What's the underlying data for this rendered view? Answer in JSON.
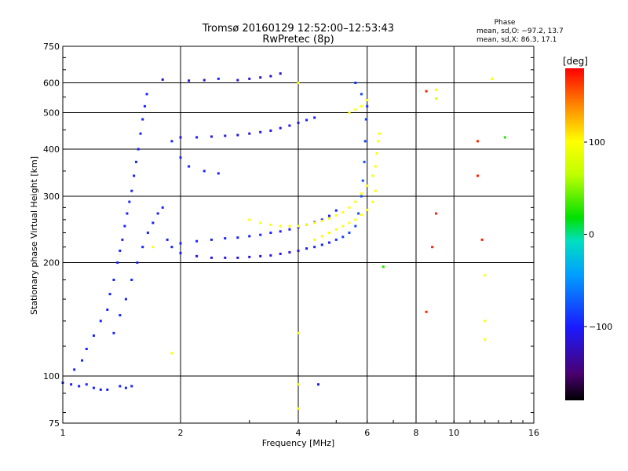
{
  "title": {
    "line1": "Tromsø 20160129 12:52:00–12:53:43",
    "line2": "RwPretec (8p)"
  },
  "phase_info": {
    "heading": "Phase",
    "line_o": "mean, sd,O: −97.2, 13.7",
    "line_x": "mean, sd,X:  86.3, 17.1"
  },
  "colorbar": {
    "label": "[deg]",
    "ticks": [
      {
        "value": 100,
        "label": "100"
      },
      {
        "value": 0,
        "label": "0"
      },
      {
        "value": -100,
        "label": "−100"
      }
    ],
    "range": [
      -180,
      180
    ]
  },
  "chart_data": {
    "type": "scatter",
    "xlabel": "Frequency [MHz]",
    "ylabel": "Stationary phase Virtual Height [km]",
    "xscale": "log2",
    "yscale": "log",
    "xlim": [
      1,
      16
    ],
    "ylim": [
      75,
      750
    ],
    "xticks": [
      {
        "value": 1,
        "label": "1"
      },
      {
        "value": 2,
        "label": "2"
      },
      {
        "value": 4,
        "label": "4"
      },
      {
        "value": 6,
        "label": "6"
      },
      {
        "value": 8,
        "label": "8"
      },
      {
        "value": 10,
        "label": "10"
      },
      {
        "value": 16,
        "label": "16"
      }
    ],
    "yticks": [
      {
        "value": 75,
        "label": "75"
      },
      {
        "value": 100,
        "label": "100"
      },
      {
        "value": 200,
        "label": "200"
      },
      {
        "value": 300,
        "label": "300"
      },
      {
        "value": 400,
        "label": "400"
      },
      {
        "value": 500,
        "label": "500"
      },
      {
        "value": 600,
        "label": "600"
      },
      {
        "value": 750,
        "label": "750"
      }
    ],
    "grid": true,
    "series": [
      {
        "color_by": "phase",
        "points": [
          [
            1.0,
            96,
            -97
          ],
          [
            1.05,
            95,
            -97
          ],
          [
            1.1,
            94,
            -97
          ],
          [
            1.15,
            95,
            -95
          ],
          [
            1.2,
            93,
            -97
          ],
          [
            1.25,
            92,
            -97
          ],
          [
            1.3,
            92,
            -97
          ],
          [
            1.4,
            94,
            -95
          ],
          [
            1.45,
            93,
            -97
          ],
          [
            1.5,
            94,
            -95
          ],
          [
            1.07,
            104,
            -95
          ],
          [
            1.12,
            110,
            -95
          ],
          [
            1.15,
            118,
            -97
          ],
          [
            1.2,
            128,
            -97
          ],
          [
            1.25,
            140,
            -97
          ],
          [
            1.3,
            150,
            -97
          ],
          [
            1.32,
            165,
            -97
          ],
          [
            1.35,
            180,
            -97
          ],
          [
            1.38,
            200,
            -97
          ],
          [
            1.4,
            215,
            -97
          ],
          [
            1.42,
            230,
            -97
          ],
          [
            1.44,
            250,
            -97
          ],
          [
            1.46,
            270,
            -97
          ],
          [
            1.48,
            290,
            -97
          ],
          [
            1.5,
            310,
            -97
          ],
          [
            1.52,
            340,
            -97
          ],
          [
            1.54,
            370,
            -97
          ],
          [
            1.56,
            400,
            -97
          ],
          [
            1.58,
            440,
            -97
          ],
          [
            1.6,
            480,
            -97
          ],
          [
            1.62,
            520,
            -97
          ],
          [
            1.64,
            560,
            -97
          ],
          [
            1.35,
            130,
            -95
          ],
          [
            1.4,
            145,
            -95
          ],
          [
            1.45,
            160,
            -97
          ],
          [
            1.5,
            180,
            -95
          ],
          [
            1.55,
            200,
            -97
          ],
          [
            1.6,
            220,
            -97
          ],
          [
            1.65,
            240,
            -97
          ],
          [
            1.7,
            255,
            -97
          ],
          [
            1.75,
            270,
            -97
          ],
          [
            1.8,
            280,
            -97
          ],
          [
            1.85,
            230,
            -97
          ],
          [
            1.9,
            220,
            -97
          ],
          [
            2.0,
            212,
            -97
          ],
          [
            2.2,
            208,
            -110
          ],
          [
            2.4,
            206,
            -110
          ],
          [
            2.6,
            206,
            -110
          ],
          [
            2.8,
            206,
            -110
          ],
          [
            3.0,
            207,
            -110
          ],
          [
            3.2,
            208,
            -110
          ],
          [
            3.4,
            209,
            -110
          ],
          [
            3.6,
            211,
            -110
          ],
          [
            3.8,
            213,
            -110
          ],
          [
            4.0,
            215,
            -110
          ],
          [
            4.2,
            218,
            -100
          ],
          [
            4.4,
            220,
            -97
          ],
          [
            4.6,
            223,
            -97
          ],
          [
            4.8,
            226,
            -97
          ],
          [
            5.0,
            230,
            -90
          ],
          [
            5.2,
            234,
            -85
          ],
          [
            5.4,
            240,
            -80
          ],
          [
            5.6,
            250,
            -80
          ],
          [
            5.7,
            270,
            -80
          ],
          [
            5.8,
            300,
            -80
          ],
          [
            5.85,
            330,
            -80
          ],
          [
            5.9,
            370,
            -80
          ],
          [
            5.93,
            420,
            -85
          ],
          [
            5.96,
            480,
            -85
          ],
          [
            6.0,
            520,
            -90
          ],
          [
            5.8,
            560,
            -85
          ],
          [
            5.6,
            600,
            -90
          ],
          [
            2.0,
            225,
            -97
          ],
          [
            2.2,
            228,
            -97
          ],
          [
            2.4,
            230,
            -97
          ],
          [
            2.6,
            232,
            -97
          ],
          [
            2.8,
            233,
            -97
          ],
          [
            3.0,
            235,
            -97
          ],
          [
            3.2,
            237,
            -97
          ],
          [
            3.4,
            240,
            -97
          ],
          [
            3.6,
            242,
            -97
          ],
          [
            3.8,
            245,
            -97
          ],
          [
            4.0,
            248,
            -97
          ],
          [
            4.2,
            252,
            -97
          ],
          [
            4.4,
            256,
            -97
          ],
          [
            4.6,
            260,
            -97
          ],
          [
            4.8,
            266,
            -97
          ],
          [
            5.0,
            275,
            -97
          ],
          [
            2.0,
            430,
            -105
          ],
          [
            2.2,
            430,
            -105
          ],
          [
            2.4,
            432,
            -105
          ],
          [
            2.6,
            434,
            -105
          ],
          [
            2.8,
            436,
            -110
          ],
          [
            3.0,
            440,
            -110
          ],
          [
            3.2,
            444,
            -110
          ],
          [
            3.4,
            448,
            -110
          ],
          [
            3.6,
            455,
            -110
          ],
          [
            3.8,
            462,
            -105
          ],
          [
            4.0,
            470,
            -105
          ],
          [
            4.2,
            478,
            -97
          ],
          [
            4.4,
            485,
            -97
          ],
          [
            1.9,
            420,
            -97
          ],
          [
            2.0,
            380,
            -97
          ],
          [
            2.1,
            360,
            -97
          ],
          [
            2.3,
            350,
            -97
          ],
          [
            2.5,
            345,
            -97
          ],
          [
            2.8,
            610,
            -110
          ],
          [
            3.0,
            615,
            -110
          ],
          [
            3.2,
            620,
            -120
          ],
          [
            3.4,
            625,
            -120
          ],
          [
            3.6,
            635,
            -120
          ],
          [
            1.8,
            612,
            -120
          ],
          [
            2.1,
            608,
            -110
          ],
          [
            2.3,
            610,
            -110
          ],
          [
            2.5,
            615,
            -97
          ],
          [
            3.0,
            260,
            100
          ],
          [
            3.2,
            255,
            100
          ],
          [
            3.4,
            252,
            100
          ],
          [
            3.6,
            250,
            100
          ],
          [
            3.8,
            250,
            100
          ],
          [
            4.0,
            250,
            100
          ],
          [
            4.2,
            252,
            100
          ],
          [
            4.4,
            255,
            100
          ],
          [
            4.6,
            258,
            100
          ],
          [
            4.8,
            262,
            100
          ],
          [
            5.0,
            267,
            100
          ],
          [
            5.2,
            272,
            100
          ],
          [
            5.4,
            280,
            100
          ],
          [
            5.6,
            290,
            100
          ],
          [
            5.8,
            305,
            100
          ],
          [
            6.0,
            320,
            100
          ],
          [
            6.2,
            340,
            100
          ],
          [
            6.3,
            360,
            100
          ],
          [
            6.35,
            390,
            100
          ],
          [
            6.4,
            420,
            100
          ],
          [
            6.45,
            440,
            100
          ],
          [
            4.4,
            230,
            100
          ],
          [
            4.6,
            235,
            100
          ],
          [
            4.8,
            240,
            100
          ],
          [
            5.0,
            245,
            100
          ],
          [
            5.2,
            250,
            100
          ],
          [
            5.4,
            255,
            100
          ],
          [
            5.6,
            260,
            100
          ],
          [
            5.8,
            268,
            100
          ],
          [
            6.0,
            276,
            100
          ],
          [
            6.2,
            290,
            100
          ],
          [
            6.3,
            310,
            100
          ],
          [
            5.4,
            500,
            100
          ],
          [
            5.6,
            510,
            100
          ],
          [
            5.8,
            520,
            100
          ],
          [
            6.0,
            540,
            100
          ],
          [
            1.7,
            220,
            100
          ],
          [
            1.9,
            115,
            100
          ],
          [
            4.0,
            95,
            100
          ],
          [
            4.0,
            130,
            100
          ],
          [
            4.0,
            82,
            100
          ],
          [
            9.0,
            575,
            100
          ],
          [
            12.5,
            615,
            100
          ],
          [
            12.0,
            185,
            100
          ],
          [
            12.0,
            140,
            100
          ],
          [
            12.0,
            125,
            100
          ],
          [
            9.0,
            545,
            80
          ],
          [
            8.5,
            570,
            170
          ],
          [
            9.0,
            270,
            170
          ],
          [
            11.5,
            420,
            170
          ],
          [
            11.5,
            340,
            170
          ],
          [
            11.8,
            230,
            170
          ],
          [
            8.5,
            148,
            170
          ],
          [
            8.8,
            220,
            170
          ],
          [
            13.5,
            430,
            10
          ],
          [
            6.6,
            195,
            10
          ],
          [
            4.5,
            95,
            -97
          ],
          [
            4.0,
            600,
            100
          ]
        ]
      }
    ]
  }
}
